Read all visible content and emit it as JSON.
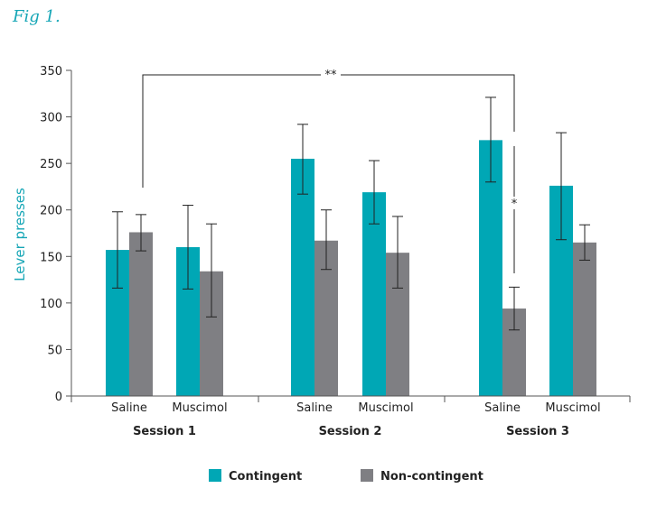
{
  "figure_label": "Fig 1.",
  "colors": {
    "accent": "#16a6b6",
    "contingent": "#00a7b5",
    "noncontingent": "#7f7f83"
  },
  "chart_data": {
    "type": "bar",
    "ylabel": "Lever presses",
    "ylim": [
      0,
      350
    ],
    "yticks": [
      0,
      50,
      100,
      150,
      200,
      250,
      300,
      350
    ],
    "sessions": [
      {
        "label": "Session 1",
        "groups": [
          "Saline",
          "Muscimol"
        ]
      },
      {
        "label": "Session 2",
        "groups": [
          "Saline",
          "Muscimol"
        ]
      },
      {
        "label": "Session 3",
        "groups": [
          "Saline",
          "Muscimol"
        ]
      }
    ],
    "series": [
      {
        "name": "Contingent",
        "color": "#00a7b5",
        "values": [
          157,
          160,
          255,
          219,
          275,
          226
        ],
        "error_low": [
          116,
          115,
          217,
          185,
          230,
          168
        ],
        "error_high": [
          198,
          205,
          292,
          253,
          321,
          283
        ]
      },
      {
        "name": "Non-contingent",
        "color": "#7f7f83",
        "values": [
          176,
          134,
          167,
          154,
          94,
          165
        ],
        "error_low": [
          156,
          85,
          136,
          116,
          71,
          146
        ],
        "error_high": [
          195,
          185,
          200,
          193,
          117,
          184
        ]
      }
    ],
    "significance": [
      {
        "label": "**"
      },
      {
        "label": "*"
      }
    ],
    "legend": {
      "position": "bottom",
      "entries": [
        "Contingent",
        "Non-contingent"
      ]
    }
  }
}
